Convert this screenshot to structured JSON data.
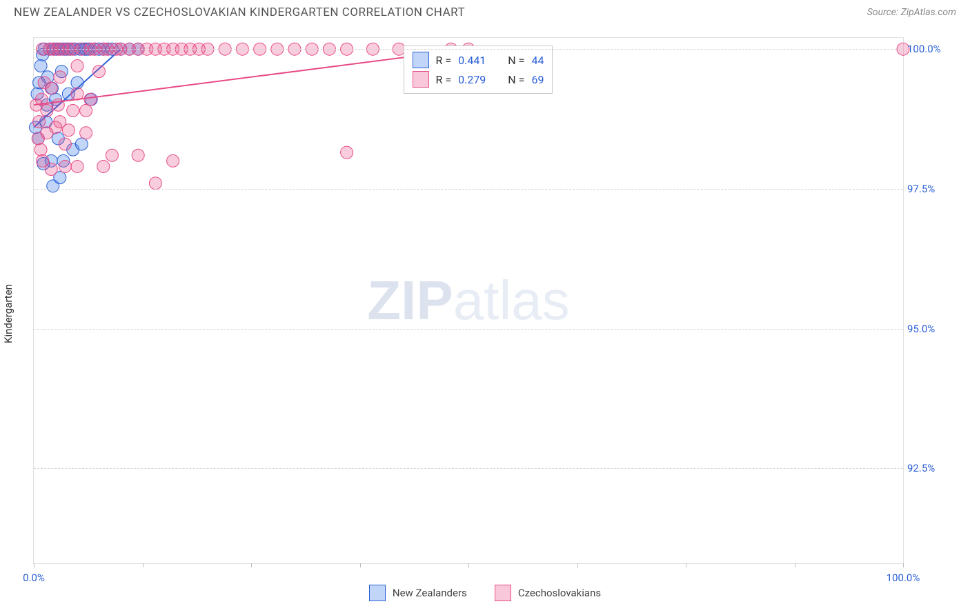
{
  "title": "NEW ZEALANDER VS CZECHOSLOVAKIAN KINDERGARTEN CORRELATION CHART",
  "source": "Source: ZipAtlas.com",
  "ylabel": "Kindergarten",
  "watermark_bold": "ZIP",
  "watermark_light": "atlas",
  "chart": {
    "type": "scatter",
    "background_color": "#ffffff",
    "grid_color": "#d5d5d5",
    "border_color": "#e0e0e0",
    "xlim": [
      0,
      100
    ],
    "ylim": [
      90.8,
      100.2
    ],
    "ytick_step": 2.5,
    "yticks": [
      {
        "v": 100.0,
        "label": "100.0%"
      },
      {
        "v": 97.5,
        "label": "97.5%"
      },
      {
        "v": 95.0,
        "label": "95.0%"
      },
      {
        "v": 92.5,
        "label": "92.5%"
      }
    ],
    "xtick_positions": [
      0,
      12.5,
      25,
      37.5,
      50,
      62.5,
      75,
      87.5,
      100
    ],
    "xtick_labels": [
      {
        "x": 0,
        "label": "0.0%"
      },
      {
        "x": 100,
        "label": "100.0%"
      }
    ],
    "stats_box": {
      "top_pct": 1.5,
      "left_pct": 42.5,
      "rows": [
        {
          "swatch": "blue",
          "r_label": "R =",
          "r": "0.441",
          "n_label": "N =",
          "n": "44"
        },
        {
          "swatch": "pink",
          "r_label": "R =",
          "r": "0.279",
          "n_label": "N =",
          "n": "69"
        }
      ]
    },
    "series": [
      {
        "name": "New Zealanders",
        "color_fill": "rgba(74,134,232,0.35)",
        "color_stroke": "#2a5fd8",
        "marker": "circle",
        "marker_radius": 9,
        "trend": {
          "x1": 0,
          "y1": 98.6,
          "x2": 10,
          "y2": 100.0,
          "width": 2
        },
        "points": [
          [
            0.2,
            98.6
          ],
          [
            0.4,
            99.2
          ],
          [
            0.6,
            99.4
          ],
          [
            0.8,
            99.7
          ],
          [
            1.0,
            99.9
          ],
          [
            1.2,
            100.0
          ],
          [
            1.4,
            98.7
          ],
          [
            1.5,
            99.0
          ],
          [
            1.6,
            99.5
          ],
          [
            1.8,
            100.0
          ],
          [
            2.0,
            98.0
          ],
          [
            2.1,
            99.3
          ],
          [
            2.3,
            100.0
          ],
          [
            2.5,
            99.1
          ],
          [
            2.6,
            100.0
          ],
          [
            2.8,
            98.4
          ],
          [
            3.0,
            100.0
          ],
          [
            3.2,
            99.6
          ],
          [
            3.4,
            98.0
          ],
          [
            3.5,
            100.0
          ],
          [
            3.8,
            100.0
          ],
          [
            4.0,
            99.2
          ],
          [
            4.2,
            100.0
          ],
          [
            4.5,
            98.2
          ],
          [
            4.7,
            100.0
          ],
          [
            5.0,
            99.4
          ],
          [
            5.3,
            100.0
          ],
          [
            5.5,
            98.3
          ],
          [
            5.8,
            100.0
          ],
          [
            6.0,
            100.0
          ],
          [
            6.3,
            100.0
          ],
          [
            6.6,
            99.1
          ],
          [
            7.0,
            100.0
          ],
          [
            7.5,
            100.0
          ],
          [
            8.0,
            100.0
          ],
          [
            8.5,
            100.0
          ],
          [
            9.0,
            100.0
          ],
          [
            10.0,
            100.0
          ],
          [
            11.0,
            100.0
          ],
          [
            12.0,
            100.0
          ],
          [
            2.2,
            97.55
          ],
          [
            0.5,
            98.4
          ],
          [
            3.0,
            97.7
          ],
          [
            1.1,
            97.95
          ]
        ]
      },
      {
        "name": "Czechoslovakians",
        "color_fill": "rgba(232,74,134,0.28)",
        "color_stroke": "#e84a86",
        "marker": "circle",
        "marker_radius": 9,
        "trend": {
          "x1": 0,
          "y1": 99.0,
          "x2": 50,
          "y2": 100.0,
          "width": 2
        },
        "points": [
          [
            0.3,
            99.0
          ],
          [
            0.6,
            98.7
          ],
          [
            0.9,
            99.1
          ],
          [
            1.0,
            100.0
          ],
          [
            1.2,
            99.4
          ],
          [
            1.5,
            98.9
          ],
          [
            1.8,
            100.0
          ],
          [
            2.0,
            99.3
          ],
          [
            2.2,
            100.0
          ],
          [
            2.5,
            98.6
          ],
          [
            2.8,
            100.0
          ],
          [
            3.0,
            99.5
          ],
          [
            3.3,
            100.0
          ],
          [
            3.6,
            98.3
          ],
          [
            4.0,
            100.0
          ],
          [
            4.5,
            100.0
          ],
          [
            5.0,
            99.2
          ],
          [
            5.5,
            100.0
          ],
          [
            6.0,
            98.5
          ],
          [
            6.5,
            100.0
          ],
          [
            7.0,
            100.0
          ],
          [
            7.5,
            99.6
          ],
          [
            8.0,
            100.0
          ],
          [
            8.5,
            100.0
          ],
          [
            9.0,
            98.1
          ],
          [
            9.5,
            100.0
          ],
          [
            10.0,
            100.0
          ],
          [
            11.0,
            100.0
          ],
          [
            12.0,
            100.0
          ],
          [
            13.0,
            100.0
          ],
          [
            14.0,
            100.0
          ],
          [
            15.0,
            100.0
          ],
          [
            16.0,
            100.0
          ],
          [
            17.0,
            100.0
          ],
          [
            18.0,
            100.0
          ],
          [
            19.0,
            100.0
          ],
          [
            20.0,
            100.0
          ],
          [
            22.0,
            100.0
          ],
          [
            24.0,
            100.0
          ],
          [
            26.0,
            100.0
          ],
          [
            28.0,
            100.0
          ],
          [
            30.0,
            100.0
          ],
          [
            32.0,
            100.0
          ],
          [
            34.0,
            100.0
          ],
          [
            36.0,
            100.0
          ],
          [
            39.0,
            100.0
          ],
          [
            42.0,
            100.0
          ],
          [
            48.0,
            100.0
          ],
          [
            50.0,
            100.0
          ],
          [
            1.5,
            98.5
          ],
          [
            3.6,
            97.9
          ],
          [
            4.0,
            98.55
          ],
          [
            5.0,
            97.9
          ],
          [
            1.0,
            98.0
          ],
          [
            2.0,
            97.85
          ],
          [
            0.8,
            98.2
          ],
          [
            6.0,
            98.9
          ],
          [
            8.0,
            97.9
          ],
          [
            12.0,
            98.1
          ],
          [
            14.0,
            97.6
          ],
          [
            16.0,
            98.0
          ],
          [
            36.0,
            98.15
          ],
          [
            100.0,
            100.0
          ],
          [
            0.5,
            98.4
          ],
          [
            2.8,
            99.0
          ],
          [
            3.0,
            98.7
          ],
          [
            4.5,
            98.9
          ],
          [
            6.5,
            99.1
          ],
          [
            5.0,
            99.7
          ]
        ]
      }
    ]
  },
  "bottom_legend": [
    {
      "swatch": "blue",
      "label": "New Zealanders"
    },
    {
      "swatch": "pink",
      "label": "Czechoslovakians"
    }
  ]
}
